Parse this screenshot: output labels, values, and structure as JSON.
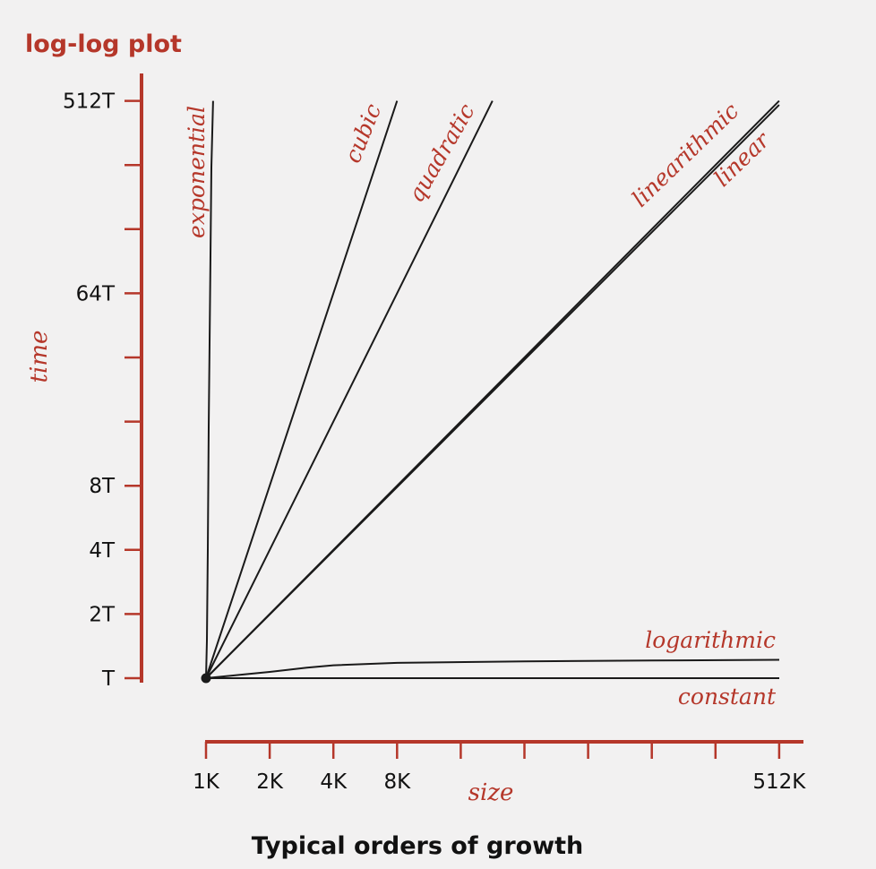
{
  "colors": {
    "accent": "#b5372a",
    "curve": "#1a1a1a",
    "text": "#111111",
    "background": "#f2f1f1"
  },
  "chart_data": {
    "type": "line",
    "title": "log-log plot",
    "caption": "Typical orders of growth",
    "xlabel": "size",
    "ylabel": "time",
    "xscale": "log2",
    "yscale": "log2",
    "x_ticks": [
      "1K",
      "2K",
      "4K",
      "8K",
      "",
      "",
      "",
      "",
      "",
      "512K"
    ],
    "y_ticks": [
      "T",
      "2T",
      "4T",
      "8T",
      "",
      "",
      "64T",
      "",
      "",
      "512T"
    ],
    "series": [
      {
        "name": "constant",
        "x": [
          1,
          2,
          4,
          8,
          16,
          32,
          64,
          128,
          256,
          512
        ],
        "y": [
          1,
          1,
          1,
          1,
          1,
          1,
          1,
          1,
          1,
          1
        ]
      },
      {
        "name": "logarithmic",
        "x": [
          1,
          1.5,
          2,
          3,
          4,
          8,
          32,
          128,
          512
        ],
        "y": [
          1,
          1.04,
          1.07,
          1.12,
          1.15,
          1.18,
          1.2,
          1.21,
          1.22
        ]
      },
      {
        "name": "linear",
        "x": [
          1,
          512
        ],
        "y": [
          1,
          490
        ]
      },
      {
        "name": "linearithmic",
        "x": [
          1,
          512
        ],
        "y": [
          1,
          512
        ]
      },
      {
        "name": "quadratic",
        "x": [
          1,
          2,
          4,
          8,
          16,
          22.6
        ],
        "y": [
          1,
          4,
          16,
          64,
          256,
          512
        ]
      },
      {
        "name": "cubic",
        "x": [
          1,
          2,
          4,
          8
        ],
        "y": [
          1,
          8,
          64,
          512
        ]
      },
      {
        "name": "exponential",
        "x": [
          1,
          1.01,
          1.02,
          1.03,
          1.045,
          1.06,
          1.08
        ],
        "y": [
          1,
          1.5,
          4,
          15,
          60,
          250,
          512
        ]
      }
    ],
    "grid": false,
    "legend": "labels placed at the end of each curve"
  }
}
